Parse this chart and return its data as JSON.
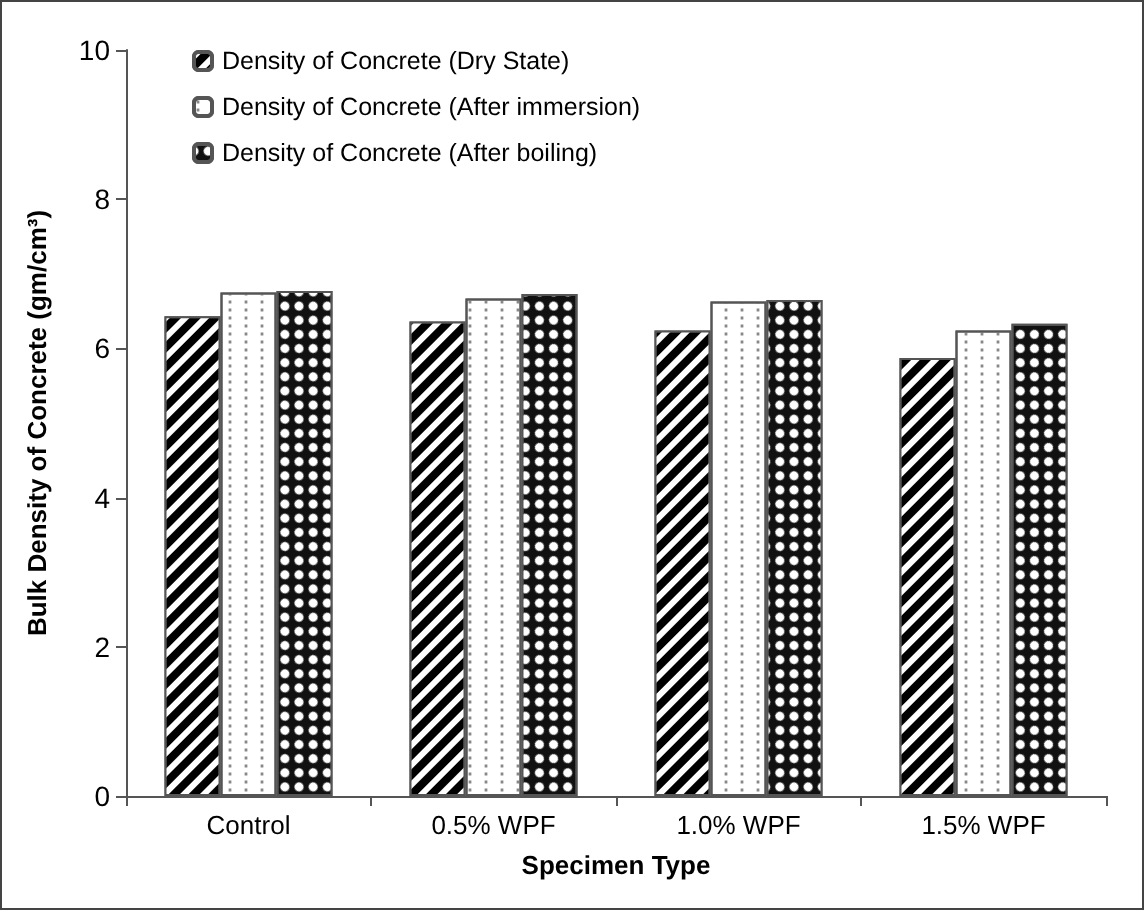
{
  "chart_data": {
    "type": "bar",
    "xlabel": "Specimen Type",
    "ylabel": "Bulk Density of Concrete (gm/cm³)",
    "categories": [
      "Control",
      "0.5% WPF",
      "1.0% WPF",
      "1.5% WPF"
    ],
    "series": [
      {
        "name": "Density of Concrete (Dry State)",
        "color": "#000000",
        "values": [
          6.43,
          6.36,
          6.24,
          5.87
        ]
      },
      {
        "name": "Density of Concrete (After immersion)",
        "color": "#ffffff",
        "values": [
          6.75,
          6.67,
          6.63,
          6.24
        ]
      },
      {
        "name": "Density of Concrete (After boiling)",
        "color": "#111111",
        "values": [
          6.77,
          6.73,
          6.65,
          6.33
        ]
      }
    ],
    "ylim": [
      0,
      10
    ],
    "yticks": [
      0,
      2,
      4,
      6,
      8,
      10
    ],
    "grid": false,
    "legend": "top left"
  }
}
